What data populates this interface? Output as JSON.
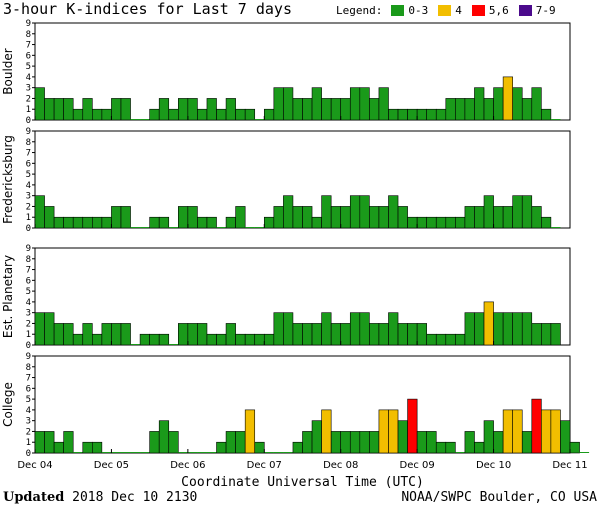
{
  "title": "3-hour K-indices for Last 7 days",
  "legend": {
    "label": "Legend:",
    "items": [
      {
        "label": "0-3",
        "color": "#1a9a1a"
      },
      {
        "label": "4",
        "color": "#f2be00"
      },
      {
        "label": "5,6",
        "color": "#ff0000"
      },
      {
        "label": "7-9",
        "color": "#4b0a8c"
      }
    ]
  },
  "chart_data": {
    "type": "bar",
    "ylim": [
      0,
      9
    ],
    "y_ticks": [
      "0",
      "1",
      "2",
      "3",
      "4",
      "5",
      "6",
      "7",
      "8",
      "9"
    ],
    "x_ticks": [
      "Dec 04",
      "Dec 05",
      "Dec 06",
      "Dec 07",
      "Dec 08",
      "Dec 09",
      "Dec 10",
      "Dec 11"
    ],
    "xlabel": "Coordinate Universal Time (UTC)",
    "colors": {
      "quiet": "#1a9a1a",
      "active": "#f2be00",
      "storm": "#ff0000",
      "severe": "#4b0a8c"
    },
    "panels": [
      {
        "name": "Boulder",
        "values": [
          3,
          2,
          2,
          2,
          1,
          2,
          1,
          1,
          2,
          2,
          0,
          0,
          1,
          2,
          1,
          2,
          2,
          1,
          2,
          1,
          2,
          1,
          1,
          0,
          1,
          3,
          3,
          2,
          2,
          3,
          2,
          2,
          2,
          3,
          3,
          2,
          3,
          1,
          1,
          1,
          1,
          1,
          1,
          2,
          2,
          2,
          3,
          2,
          3,
          4,
          3,
          2,
          3,
          1,
          0
        ]
      },
      {
        "name": "Fredericksburg",
        "values": [
          3,
          2,
          1,
          1,
          1,
          1,
          1,
          1,
          2,
          2,
          0,
          0,
          1,
          1,
          0,
          2,
          2,
          1,
          1,
          0,
          1,
          2,
          0,
          0,
          1,
          2,
          3,
          2,
          2,
          1,
          3,
          2,
          2,
          3,
          3,
          2,
          2,
          3,
          2,
          1,
          1,
          1,
          1,
          1,
          1,
          2,
          2,
          3,
          2,
          2,
          3,
          3,
          2,
          1,
          0
        ]
      },
      {
        "name": "Est. Planetary",
        "values": [
          3,
          3,
          2,
          2,
          1,
          2,
          1,
          2,
          2,
          2,
          0,
          1,
          1,
          1,
          0,
          2,
          2,
          2,
          1,
          1,
          2,
          1,
          1,
          1,
          1,
          3,
          3,
          2,
          2,
          2,
          3,
          2,
          2,
          3,
          3,
          2,
          2,
          3,
          2,
          2,
          2,
          1,
          1,
          1,
          1,
          3,
          3,
          4,
          3,
          3,
          3,
          3,
          2,
          2,
          2
        ]
      },
      {
        "name": "College",
        "values": [
          2,
          2,
          1,
          2,
          0,
          1,
          1,
          0,
          0,
          0,
          0,
          0,
          2,
          3,
          2,
          0,
          0,
          0,
          0,
          1,
          2,
          2,
          4,
          1,
          0,
          0,
          0,
          1,
          2,
          3,
          4,
          2,
          2,
          2,
          2,
          2,
          4,
          4,
          3,
          5,
          2,
          2,
          1,
          1,
          0,
          2,
          1,
          3,
          2,
          4,
          4,
          2,
          5,
          4,
          4,
          3,
          1,
          0
        ]
      }
    ]
  },
  "footer": {
    "updated_label": "Updated",
    "updated_value": "2018 Dec 10 2130",
    "credit": "NOAA/SWPC Boulder, CO USA"
  }
}
